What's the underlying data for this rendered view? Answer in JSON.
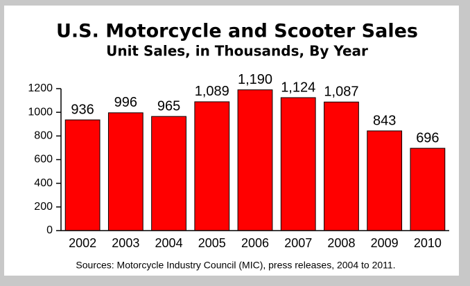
{
  "chart_data": {
    "type": "bar",
    "title": "U.S. Motorcycle and Scooter Sales",
    "subtitle": "Unit Sales, in Thousands, By Year",
    "source": "Sources: Motorcycle Industry Council (MIC), press releases, 2004 to 2011.",
    "categories": [
      "2002",
      "2003",
      "2004",
      "2005",
      "2006",
      "2007",
      "2008",
      "2009",
      "2010"
    ],
    "values": [
      936,
      996,
      965,
      1089,
      1190,
      1124,
      1087,
      843,
      696
    ],
    "value_labels": [
      "936",
      "996",
      "965",
      "1,089",
      "1,190",
      "1,124",
      "1,087",
      "843",
      "696"
    ],
    "color": "#ff0000",
    "ylim": [
      0,
      1200
    ],
    "yticks": [
      0,
      200,
      400,
      600,
      800,
      1000,
      1200
    ]
  }
}
